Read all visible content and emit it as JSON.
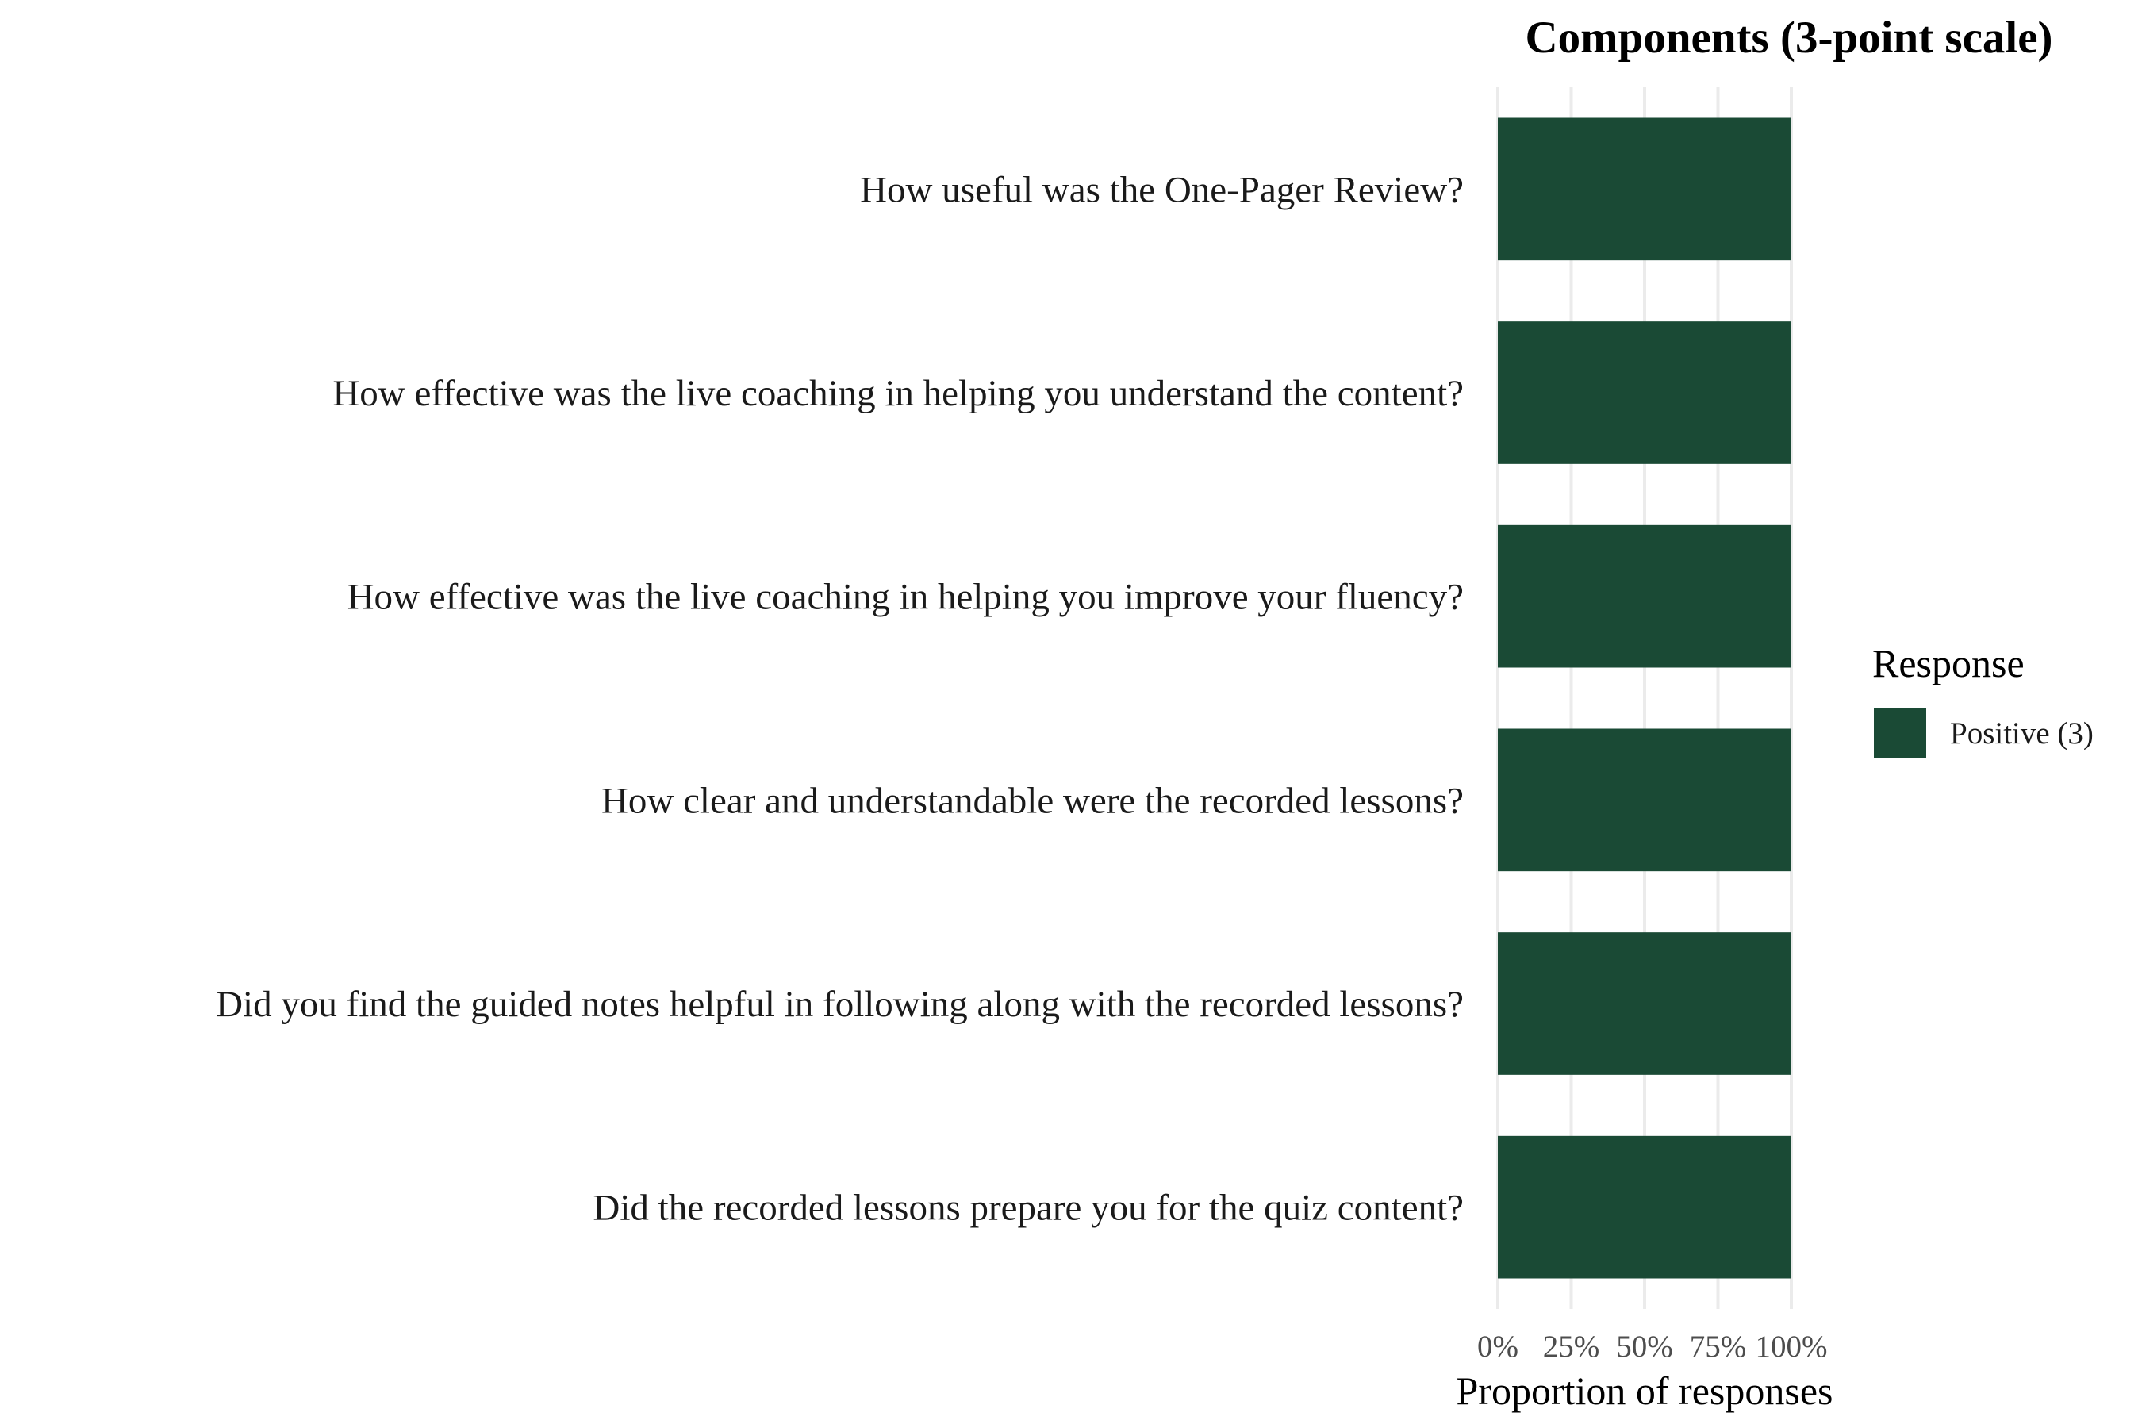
{
  "chart_data": {
    "type": "bar",
    "orientation": "horizontal",
    "stacked": true,
    "title": "Components (3-point scale)",
    "xlabel": "Proportion of responses",
    "ylabel": "",
    "xlim": [
      0,
      1
    ],
    "x_ticks": [
      0,
      0.25,
      0.5,
      0.75,
      1
    ],
    "x_tick_labels": [
      "0%",
      "25%",
      "50%",
      "75%",
      "100%"
    ],
    "categories": [
      "How useful was the One-Pager Review?",
      "How effective was the live coaching in helping you understand the content?",
      "How effective was the live coaching in helping you improve your fluency?",
      "How clear and understandable were the recorded lessons?",
      "Did you find the guided notes helpful in following along with the recorded lessons?",
      "Did the recorded lessons prepare you for the quiz content?"
    ],
    "series": [
      {
        "name": "Positive (3)",
        "color": "#1a4a35",
        "values": [
          1,
          1,
          1,
          1,
          1,
          1
        ]
      }
    ],
    "legend": {
      "title": "Response",
      "position": "right"
    },
    "grid": true
  }
}
